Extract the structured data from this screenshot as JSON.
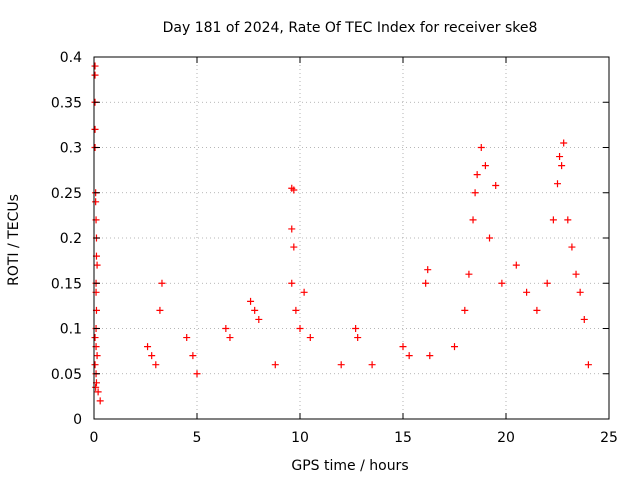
{
  "chart_data": {
    "type": "scatter",
    "title": "Day 181 of 2024, Rate Of TEC Index for receiver ske8",
    "xlabel": "GPS time / hours",
    "ylabel": "ROTI / TECUs",
    "xlim": [
      0,
      25
    ],
    "ylim": [
      0,
      0.4
    ],
    "xticks": [
      0,
      5,
      10,
      15,
      20,
      25
    ],
    "yticks": [
      0,
      0.05,
      0.1,
      0.15,
      0.2,
      0.25,
      0.3,
      0.35,
      0.4
    ],
    "xtick_labels": [
      "0",
      "5",
      "10",
      "15",
      "20",
      "25"
    ],
    "ytick_labels": [
      "0",
      "0.05",
      "0.1",
      "0.15",
      "0.2",
      "0.25",
      "0.3",
      "0.35",
      "0.4"
    ],
    "grid": true,
    "marker": "+",
    "color": "#ff0000",
    "series": [
      {
        "name": "ROTI",
        "points": [
          [
            0.05,
            0.39
          ],
          [
            0.05,
            0.38
          ],
          [
            0.05,
            0.35
          ],
          [
            0.05,
            0.32
          ],
          [
            0.05,
            0.3
          ],
          [
            0.08,
            0.25
          ],
          [
            0.08,
            0.24
          ],
          [
            0.1,
            0.22
          ],
          [
            0.12,
            0.2
          ],
          [
            0.12,
            0.18
          ],
          [
            0.15,
            0.17
          ],
          [
            0.1,
            0.15
          ],
          [
            0.1,
            0.14
          ],
          [
            0.12,
            0.12
          ],
          [
            0.1,
            0.1
          ],
          [
            0.05,
            0.09
          ],
          [
            0.1,
            0.08
          ],
          [
            0.15,
            0.07
          ],
          [
            0.05,
            0.06
          ],
          [
            0.1,
            0.05
          ],
          [
            0.12,
            0.04
          ],
          [
            0.08,
            0.035
          ],
          [
            0.2,
            0.03
          ],
          [
            0.3,
            0.02
          ],
          [
            2.6,
            0.08
          ],
          [
            2.8,
            0.07
          ],
          [
            3.0,
            0.06
          ],
          [
            3.3,
            0.15
          ],
          [
            3.2,
            0.12
          ],
          [
            4.5,
            0.09
          ],
          [
            4.8,
            0.07
          ],
          [
            5.0,
            0.05
          ],
          [
            6.4,
            0.1
          ],
          [
            6.6,
            0.09
          ],
          [
            7.6,
            0.13
          ],
          [
            7.8,
            0.12
          ],
          [
            8.0,
            0.11
          ],
          [
            8.8,
            0.06
          ],
          [
            9.6,
            0.255
          ],
          [
            9.7,
            0.253
          ],
          [
            9.6,
            0.21
          ],
          [
            9.7,
            0.19
          ],
          [
            9.6,
            0.15
          ],
          [
            9.8,
            0.12
          ],
          [
            10.2,
            0.14
          ],
          [
            10.0,
            0.1
          ],
          [
            10.5,
            0.09
          ],
          [
            12.0,
            0.06
          ],
          [
            12.7,
            0.1
          ],
          [
            12.8,
            0.09
          ],
          [
            13.5,
            0.06
          ],
          [
            15.0,
            0.08
          ],
          [
            15.3,
            0.07
          ],
          [
            16.2,
            0.165
          ],
          [
            16.1,
            0.15
          ],
          [
            16.3,
            0.07
          ],
          [
            17.5,
            0.08
          ],
          [
            18.0,
            0.12
          ],
          [
            18.2,
            0.16
          ],
          [
            18.4,
            0.22
          ],
          [
            18.5,
            0.25
          ],
          [
            18.6,
            0.27
          ],
          [
            18.8,
            0.3
          ],
          [
            19.0,
            0.28
          ],
          [
            19.2,
            0.2
          ],
          [
            19.5,
            0.258
          ],
          [
            19.8,
            0.15
          ],
          [
            20.5,
            0.17
          ],
          [
            21.0,
            0.14
          ],
          [
            21.5,
            0.12
          ],
          [
            22.0,
            0.15
          ],
          [
            22.3,
            0.22
          ],
          [
            22.5,
            0.26
          ],
          [
            22.6,
            0.29
          ],
          [
            22.8,
            0.305
          ],
          [
            22.7,
            0.28
          ],
          [
            23.0,
            0.22
          ],
          [
            23.2,
            0.19
          ],
          [
            23.4,
            0.16
          ],
          [
            23.6,
            0.14
          ],
          [
            23.8,
            0.11
          ],
          [
            24.0,
            0.06
          ]
        ]
      }
    ]
  }
}
